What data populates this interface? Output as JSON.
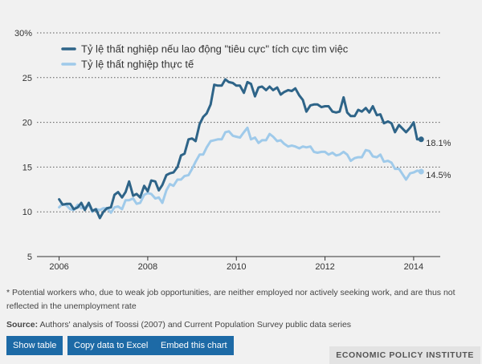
{
  "chart_data": {
    "type": "line",
    "x_range": [
      2005.5,
      2014.6
    ],
    "ylim": [
      5,
      30
    ],
    "y_ticks": [
      "30%",
      "25",
      "20",
      "15",
      "10",
      "5"
    ],
    "y_tick_values": [
      30,
      25,
      20,
      15,
      10,
      5
    ],
    "x_ticks": [
      "2006",
      "2008",
      "2010",
      "2012",
      "2014"
    ],
    "x_tick_values": [
      2006,
      2008,
      2010,
      2012,
      2014
    ],
    "series": [
      {
        "name": "Tỷ lệ thất nghiệp nếu lao động \"tiêu cực\" tích cực tìm việc",
        "color": "#2e6488",
        "end_label": "18.1%",
        "x": [
          2006.0,
          2006.08,
          2006.17,
          2006.25,
          2006.33,
          2006.42,
          2006.5,
          2006.58,
          2006.67,
          2006.75,
          2006.83,
          2006.92,
          2007.0,
          2007.08,
          2007.17,
          2007.25,
          2007.33,
          2007.42,
          2007.5,
          2007.58,
          2007.67,
          2007.75,
          2007.83,
          2007.92,
          2008.0,
          2008.08,
          2008.17,
          2008.25,
          2008.33,
          2008.42,
          2008.5,
          2008.58,
          2008.67,
          2008.75,
          2008.83,
          2008.92,
          2009.0,
          2009.08,
          2009.17,
          2009.25,
          2009.33,
          2009.42,
          2009.5,
          2009.58,
          2009.67,
          2009.75,
          2009.83,
          2009.92,
          2010.0,
          2010.08,
          2010.17,
          2010.25,
          2010.33,
          2010.42,
          2010.5,
          2010.58,
          2010.67,
          2010.75,
          2010.83,
          2010.92,
          2011.0,
          2011.08,
          2011.17,
          2011.25,
          2011.33,
          2011.42,
          2011.5,
          2011.58,
          2011.67,
          2011.75,
          2011.83,
          2011.92,
          2012.0,
          2012.08,
          2012.17,
          2012.25,
          2012.33,
          2012.42,
          2012.5,
          2012.58,
          2012.67,
          2012.75,
          2012.83,
          2012.92,
          2013.0,
          2013.08,
          2013.17,
          2013.25,
          2013.33,
          2013.42,
          2013.5,
          2013.58,
          2013.67,
          2013.75,
          2013.83,
          2013.92,
          2014.0,
          2014.08,
          2014.17
        ],
        "values": [
          11.4,
          10.8,
          10.9,
          10.9,
          10.3,
          10.5,
          11.0,
          10.2,
          11.0,
          10.1,
          10.3,
          9.3,
          10.0,
          10.4,
          10.5,
          11.9,
          12.2,
          11.6,
          12.2,
          13.4,
          11.8,
          12.0,
          11.6,
          12.9,
          12.3,
          13.5,
          13.4,
          12.4,
          13.0,
          14.1,
          14.3,
          14.4,
          15.0,
          16.3,
          16.5,
          18.1,
          18.2,
          17.9,
          19.8,
          20.6,
          21.0,
          22.0,
          24.2,
          24.1,
          24.1,
          24.8,
          24.5,
          24.4,
          24.1,
          24.1,
          23.3,
          24.5,
          24.3,
          22.9,
          23.9,
          24.0,
          23.6,
          24.0,
          23.6,
          23.9,
          23.1,
          23.4,
          23.6,
          23.5,
          23.8,
          23.0,
          22.5,
          21.2,
          21.9,
          22.0,
          22.0,
          21.7,
          21.8,
          21.8,
          21.2,
          21.1,
          21.2,
          22.8,
          21.1,
          20.7,
          20.7,
          21.4,
          21.2,
          21.6,
          21.1,
          21.8,
          20.8,
          20.9,
          19.9,
          20.1,
          19.9,
          18.9,
          19.7,
          19.3,
          18.9,
          19.4,
          20.0,
          18.1,
          18.1
        ]
      },
      {
        "name": "Tỷ lệ thất nghiệp thực tế",
        "color": "#9fcaea",
        "end_label": "14.5%",
        "x": [
          2006.0,
          2006.08,
          2006.17,
          2006.25,
          2006.33,
          2006.42,
          2006.5,
          2006.58,
          2006.67,
          2006.75,
          2006.83,
          2006.92,
          2007.0,
          2007.08,
          2007.17,
          2007.25,
          2007.33,
          2007.42,
          2007.5,
          2007.58,
          2007.67,
          2007.75,
          2007.83,
          2007.92,
          2008.0,
          2008.08,
          2008.17,
          2008.25,
          2008.33,
          2008.42,
          2008.5,
          2008.58,
          2008.67,
          2008.75,
          2008.83,
          2008.92,
          2009.0,
          2009.08,
          2009.17,
          2009.25,
          2009.33,
          2009.42,
          2009.5,
          2009.58,
          2009.67,
          2009.75,
          2009.83,
          2009.92,
          2010.0,
          2010.08,
          2010.17,
          2010.25,
          2010.33,
          2010.42,
          2010.5,
          2010.58,
          2010.67,
          2010.75,
          2010.83,
          2010.92,
          2011.0,
          2011.08,
          2011.17,
          2011.25,
          2011.33,
          2011.42,
          2011.5,
          2011.58,
          2011.67,
          2011.75,
          2011.83,
          2011.92,
          2012.0,
          2012.08,
          2012.17,
          2012.25,
          2012.33,
          2012.42,
          2012.5,
          2012.58,
          2012.67,
          2012.75,
          2012.83,
          2012.92,
          2013.0,
          2013.08,
          2013.17,
          2013.25,
          2013.33,
          2013.42,
          2013.5,
          2013.58,
          2013.67,
          2013.75,
          2013.83,
          2013.92,
          2014.0,
          2014.08,
          2014.17
        ],
        "values": [
          10.5,
          10.9,
          10.7,
          10.3,
          10.2,
          10.8,
          10.4,
          10.5,
          10.8,
          10.0,
          10.3,
          10.2,
          10.4,
          10.4,
          9.9,
          10.5,
          10.6,
          10.3,
          11.3,
          11.3,
          11.5,
          10.9,
          11.0,
          11.9,
          12.1,
          12.0,
          11.5,
          11.6,
          11.0,
          12.4,
          13.1,
          12.9,
          13.6,
          13.6,
          14.0,
          14.1,
          14.8,
          15.6,
          16.4,
          16.4,
          17.2,
          17.9,
          18.0,
          18.1,
          18.1,
          18.9,
          19.0,
          18.5,
          18.4,
          18.3,
          18.9,
          19.4,
          18.1,
          18.3,
          17.7,
          18.0,
          18.0,
          18.7,
          18.4,
          17.9,
          18.0,
          17.6,
          17.3,
          17.4,
          17.3,
          17.1,
          17.3,
          17.2,
          17.3,
          16.7,
          16.6,
          16.7,
          16.7,
          16.4,
          16.6,
          16.3,
          16.4,
          16.7,
          16.4,
          15.7,
          16.0,
          16.1,
          16.1,
          16.9,
          16.8,
          16.2,
          16.1,
          16.4,
          15.6,
          15.7,
          15.5,
          14.8,
          14.8,
          14.2,
          13.6,
          14.3,
          14.4,
          14.6,
          14.5
        ]
      }
    ]
  },
  "footnote": "* Potential workers who, due to weak job opportunities, are neither employed nor actively seeking work, and are thus not reflected in the unemployment rate",
  "source_label": "Source:",
  "source_text": "Authors' analysis of Toossi (2007) and Current Population Survey public data series",
  "buttons": {
    "show_table": "Show table",
    "copy_excel": "Copy data to Excel",
    "embed": "Embed this chart"
  },
  "brand": "ECONOMIC POLICY INSTITUTE"
}
